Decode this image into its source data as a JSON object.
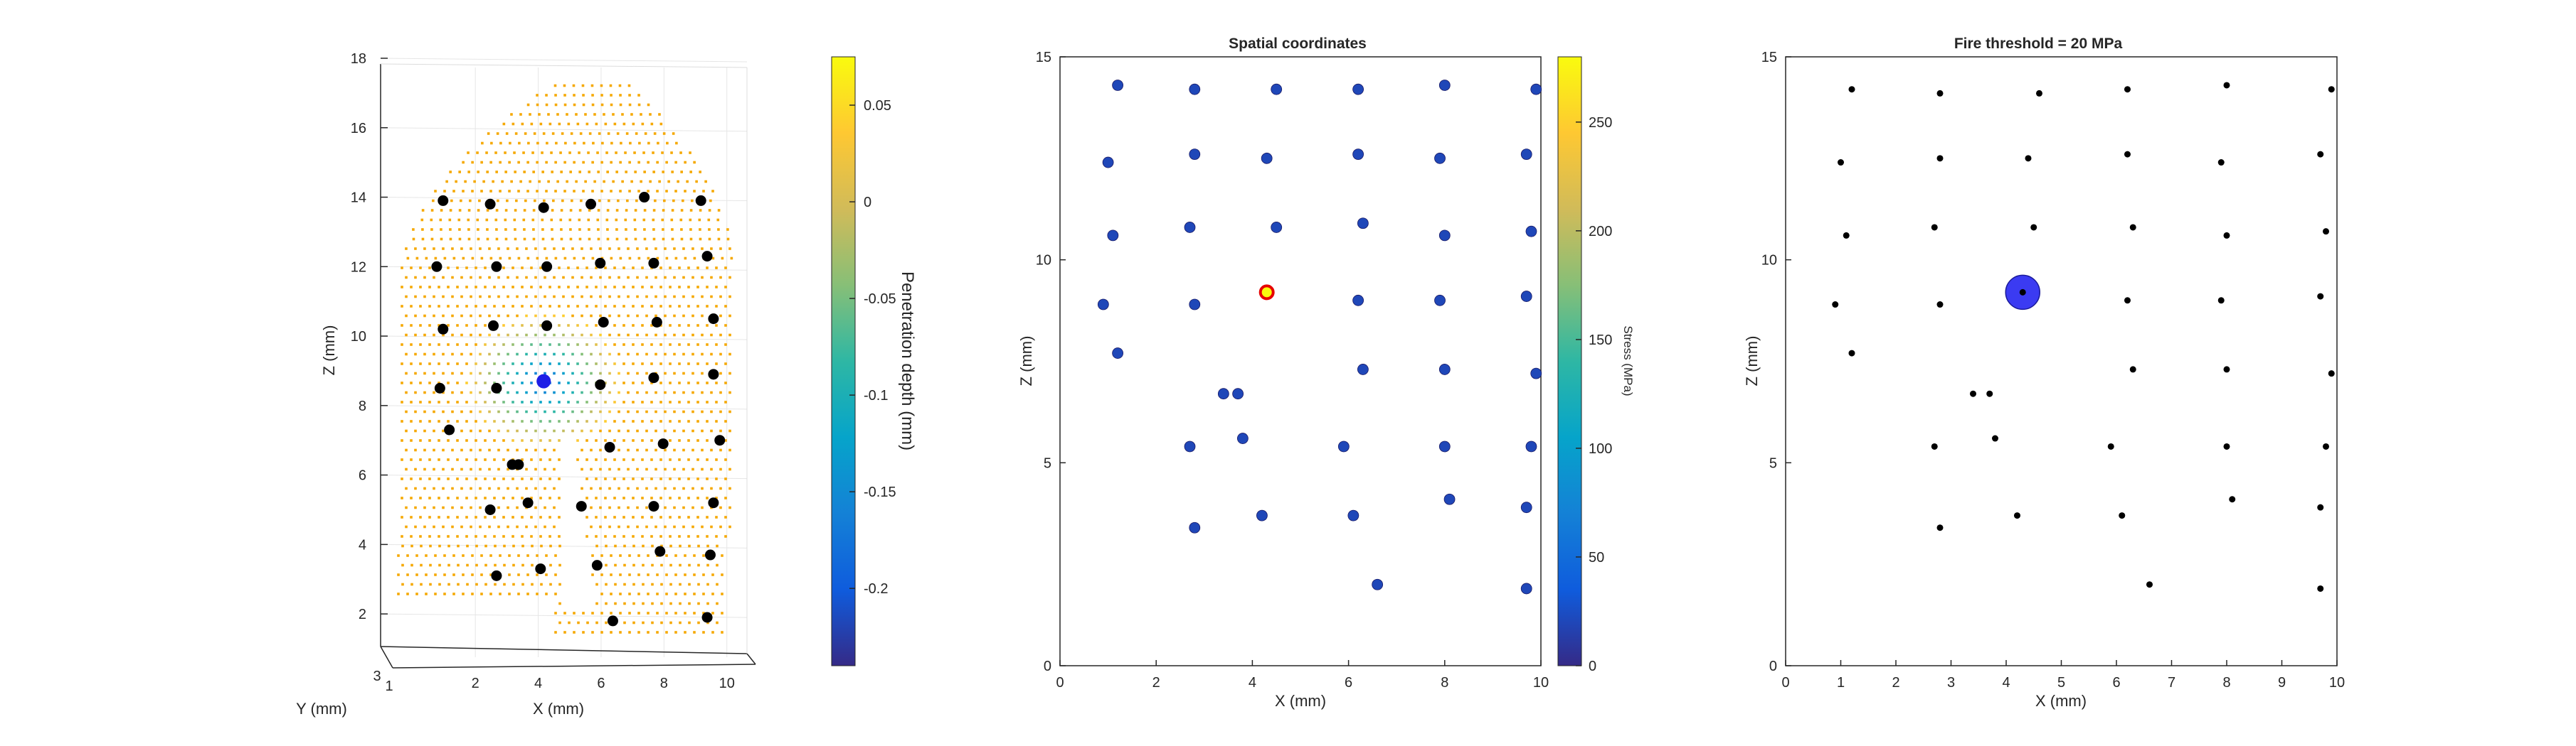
{
  "colors": {
    "parula": [
      "#352a87",
      "#0f5cdd",
      "#1481d6",
      "#06a4ca",
      "#2eb7a4",
      "#87bf77",
      "#d1bb59",
      "#fec832",
      "#f9fb0e"
    ],
    "dot_blue": "#3f3fd9",
    "dot_red": "#e60000",
    "dot_black": "#000000",
    "sensor_orange": "#f5a800",
    "grid": "#e6e6e6"
  },
  "chart_data": [
    {
      "type": "scatter",
      "view": "3d",
      "title": "",
      "xlabel": "X (mm)",
      "ylabel": "Y (mm)",
      "zlabel": "Z (mm)",
      "xticks": [
        "2",
        "4",
        "6",
        "8",
        "10"
      ],
      "yticks": [
        "1",
        "3"
      ],
      "zticks": [
        "2",
        "4",
        "6",
        "8",
        "10",
        "12",
        "14",
        "16",
        "18"
      ],
      "zlim": [
        1,
        18
      ],
      "grid": true,
      "colorbar": {
        "label": "Penetration depth (mm)",
        "range": [
          -0.24,
          0.075
        ],
        "ticks": [
          "0.05",
          "0",
          "-0.05",
          "-0.1",
          "-0.15",
          "-0.2"
        ],
        "tick_values": [
          0.05,
          0,
          -0.05,
          -0.1,
          -0.15,
          -0.2
        ]
      },
      "contact_point": {
        "x": 4.4,
        "z": 8.7
      },
      "markers": [
        [
          1.2,
          13.9
        ],
        [
          2.7,
          13.8
        ],
        [
          4.4,
          13.7
        ],
        [
          5.9,
          13.8
        ],
        [
          7.6,
          14.0
        ],
        [
          9.4,
          13.9
        ],
        [
          1.0,
          12.0
        ],
        [
          2.9,
          12.0
        ],
        [
          4.5,
          12.0
        ],
        [
          6.2,
          12.1
        ],
        [
          7.9,
          12.1
        ],
        [
          9.6,
          12.3
        ],
        [
          1.2,
          10.2
        ],
        [
          2.8,
          10.3
        ],
        [
          4.5,
          10.3
        ],
        [
          6.3,
          10.4
        ],
        [
          8.0,
          10.4
        ],
        [
          9.8,
          10.5
        ],
        [
          1.1,
          8.5
        ],
        [
          2.9,
          8.5
        ],
        [
          6.2,
          8.6
        ],
        [
          7.9,
          8.8
        ],
        [
          9.8,
          8.9
        ],
        [
          1.4,
          7.3
        ],
        [
          3.4,
          6.3
        ],
        [
          3.6,
          6.3
        ],
        [
          6.5,
          6.8
        ],
        [
          8.2,
          6.9
        ],
        [
          10.0,
          7.0
        ],
        [
          2.7,
          5.0
        ],
        [
          3.9,
          5.2
        ],
        [
          5.6,
          5.1
        ],
        [
          7.9,
          5.1
        ],
        [
          9.8,
          5.2
        ],
        [
          2.9,
          3.1
        ],
        [
          4.3,
          3.3
        ],
        [
          6.1,
          3.4
        ],
        [
          8.1,
          3.8
        ],
        [
          9.7,
          3.7
        ],
        [
          6.6,
          1.8
        ],
        [
          9.6,
          1.9
        ]
      ]
    },
    {
      "type": "scatter",
      "title": "Spatial coordinates",
      "xlabel": "X (mm)",
      "ylabel": "Z (mm)",
      "xlim": [
        0,
        10
      ],
      "ylim": [
        0,
        15
      ],
      "xticks": [
        0,
        2,
        4,
        6,
        8,
        10
      ],
      "yticks": [
        0,
        5,
        10,
        15
      ],
      "grid": false,
      "colorbar": {
        "label": "Stress (MPa)",
        "range": [
          0,
          280
        ],
        "ticks": [
          0,
          50,
          100,
          150,
          200,
          250
        ]
      },
      "points": [
        {
          "x": 1.2,
          "y": 14.3,
          "stress": 20
        },
        {
          "x": 2.8,
          "y": 14.2,
          "stress": 20
        },
        {
          "x": 4.5,
          "y": 14.2,
          "stress": 20
        },
        {
          "x": 6.2,
          "y": 14.2,
          "stress": 20
        },
        {
          "x": 8.0,
          "y": 14.3,
          "stress": 20
        },
        {
          "x": 9.9,
          "y": 14.2,
          "stress": 20
        },
        {
          "x": 1.0,
          "y": 12.4,
          "stress": 20
        },
        {
          "x": 2.8,
          "y": 12.6,
          "stress": 20
        },
        {
          "x": 4.3,
          "y": 12.5,
          "stress": 20
        },
        {
          "x": 6.2,
          "y": 12.6,
          "stress": 20
        },
        {
          "x": 7.9,
          "y": 12.5,
          "stress": 20
        },
        {
          "x": 9.7,
          "y": 12.6,
          "stress": 20
        },
        {
          "x": 1.1,
          "y": 10.6,
          "stress": 20
        },
        {
          "x": 2.7,
          "y": 10.8,
          "stress": 20
        },
        {
          "x": 4.5,
          "y": 10.8,
          "stress": 20
        },
        {
          "x": 6.3,
          "y": 10.9,
          "stress": 20
        },
        {
          "x": 8.0,
          "y": 10.6,
          "stress": 20
        },
        {
          "x": 9.8,
          "y": 10.7,
          "stress": 20
        },
        {
          "x": 0.9,
          "y": 8.9,
          "stress": 20
        },
        {
          "x": 2.8,
          "y": 8.9,
          "stress": 20
        },
        {
          "x": 4.3,
          "y": 9.2,
          "stress": 280
        },
        {
          "x": 6.2,
          "y": 9.0,
          "stress": 20
        },
        {
          "x": 7.9,
          "y": 9.0,
          "stress": 20
        },
        {
          "x": 9.7,
          "y": 9.1,
          "stress": 20
        },
        {
          "x": 1.2,
          "y": 7.7,
          "stress": 20
        },
        {
          "x": 6.3,
          "y": 7.3,
          "stress": 20
        },
        {
          "x": 8.0,
          "y": 7.3,
          "stress": 20
        },
        {
          "x": 9.9,
          "y": 7.2,
          "stress": 20
        },
        {
          "x": 3.4,
          "y": 6.7,
          "stress": 20
        },
        {
          "x": 3.7,
          "y": 6.7,
          "stress": 20
        },
        {
          "x": 2.7,
          "y": 5.4,
          "stress": 20
        },
        {
          "x": 3.8,
          "y": 5.6,
          "stress": 20
        },
        {
          "x": 5.9,
          "y": 5.4,
          "stress": 20
        },
        {
          "x": 8.0,
          "y": 5.4,
          "stress": 20
        },
        {
          "x": 9.8,
          "y": 5.4,
          "stress": 20
        },
        {
          "x": 8.1,
          "y": 4.1,
          "stress": 20
        },
        {
          "x": 9.7,
          "y": 3.9,
          "stress": 20
        },
        {
          "x": 2.8,
          "y": 3.4,
          "stress": 20
        },
        {
          "x": 4.2,
          "y": 3.7,
          "stress": 20
        },
        {
          "x": 6.1,
          "y": 3.7,
          "stress": 20
        },
        {
          "x": 6.6,
          "y": 2.0,
          "stress": 20
        },
        {
          "x": 9.7,
          "y": 1.9,
          "stress": 20
        }
      ]
    },
    {
      "type": "scatter",
      "title": "Fire threshold = 20 MPa",
      "xlabel": "X (mm)",
      "ylabel": "Z (mm)",
      "xlim": [
        0,
        10
      ],
      "ylim": [
        0,
        15
      ],
      "xticks": [
        0,
        1,
        2,
        3,
        4,
        5,
        6,
        7,
        8,
        9,
        10
      ],
      "yticks": [
        0,
        5,
        10,
        15
      ],
      "grid": false,
      "fired": {
        "x": 4.3,
        "y": 9.2
      },
      "points": [
        [
          1.2,
          14.2
        ],
        [
          2.8,
          14.1
        ],
        [
          4.6,
          14.1
        ],
        [
          6.2,
          14.2
        ],
        [
          8.0,
          14.3
        ],
        [
          9.9,
          14.2
        ],
        [
          1.0,
          12.4
        ],
        [
          2.8,
          12.5
        ],
        [
          4.4,
          12.5
        ],
        [
          6.2,
          12.6
        ],
        [
          7.9,
          12.4
        ],
        [
          9.7,
          12.6
        ],
        [
          1.1,
          10.6
        ],
        [
          2.7,
          10.8
        ],
        [
          4.5,
          10.8
        ],
        [
          6.3,
          10.8
        ],
        [
          8.0,
          10.6
        ],
        [
          9.8,
          10.7
        ],
        [
          0.9,
          8.9
        ],
        [
          2.8,
          8.9
        ],
        [
          4.3,
          9.2
        ],
        [
          6.2,
          9.0
        ],
        [
          7.9,
          9.0
        ],
        [
          9.7,
          9.1
        ],
        [
          1.2,
          7.7
        ],
        [
          6.3,
          7.3
        ],
        [
          8.0,
          7.3
        ],
        [
          9.9,
          7.2
        ],
        [
          3.4,
          6.7
        ],
        [
          3.7,
          6.7
        ],
        [
          2.7,
          5.4
        ],
        [
          3.8,
          5.6
        ],
        [
          5.9,
          5.4
        ],
        [
          8.0,
          5.4
        ],
        [
          9.8,
          5.4
        ],
        [
          8.1,
          4.1
        ],
        [
          9.7,
          3.9
        ],
        [
          2.8,
          3.4
        ],
        [
          4.2,
          3.7
        ],
        [
          6.1,
          3.7
        ],
        [
          6.6,
          2.0
        ],
        [
          9.7,
          1.9
        ]
      ]
    }
  ]
}
